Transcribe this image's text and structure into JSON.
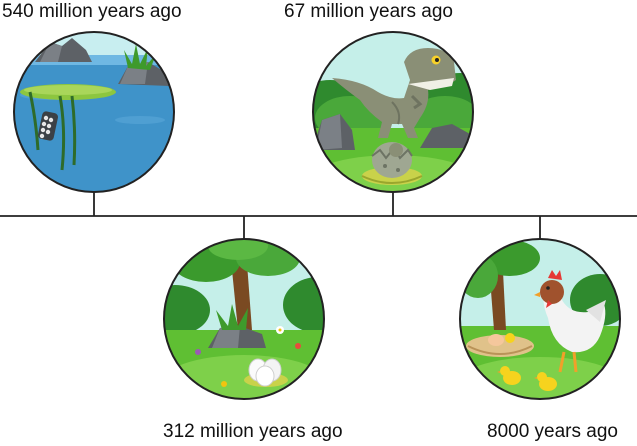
{
  "timeline": {
    "events": [
      {
        "label": "540 million years ago",
        "scene": "ocean-with-aquatic-plant-and-eggs"
      },
      {
        "label": "67 million years ago",
        "scene": "dinosaur-with-hatching-egg"
      },
      {
        "label": "312 million years ago",
        "scene": "eggs-in-grass-nest"
      },
      {
        "label": "8000 years ago",
        "scene": "hen-with-chicks-and-nest"
      }
    ]
  },
  "colors": {
    "line": "#222222",
    "sky": "#c5efe9",
    "water": "#3f93c9",
    "grass": "#5fbf33",
    "tree_trunk": "#7a4a22",
    "dino": "#8a8f76",
    "hen": "#f3f3f3",
    "chick": "#f6d31e"
  }
}
